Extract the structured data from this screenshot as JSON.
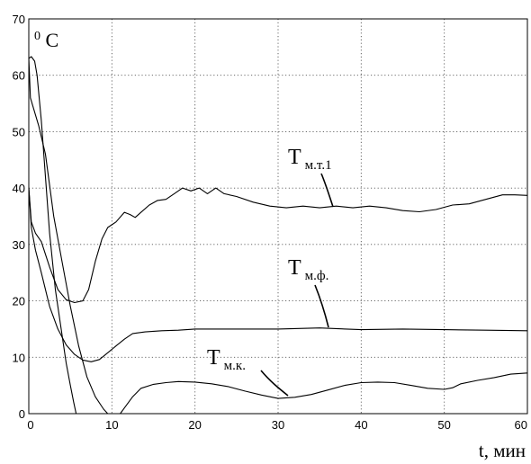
{
  "chart_data": {
    "type": "line",
    "title": "",
    "unit_label": {
      "sup": "0",
      "main": "C"
    },
    "xlabel": "t, мин",
    "ylabel": "",
    "xlim": [
      0,
      60
    ],
    "ylim": [
      0,
      70
    ],
    "xticks": [
      0,
      10,
      20,
      30,
      40,
      50,
      60
    ],
    "yticks": [
      0,
      10,
      20,
      30,
      40,
      50,
      60,
      70
    ],
    "grid": true,
    "series": [
      {
        "name": "",
        "label_main": "T",
        "label_sub": "м.т.1",
        "points": [
          [
            0,
            40
          ],
          [
            0.3,
            34
          ],
          [
            0.8,
            32
          ],
          [
            1.5,
            30.5
          ],
          [
            2.5,
            26
          ],
          [
            3.5,
            22
          ],
          [
            4.5,
            20.2
          ],
          [
            5.5,
            19.7
          ],
          [
            6.5,
            20
          ],
          [
            7.2,
            22
          ],
          [
            8,
            27
          ],
          [
            8.8,
            31
          ],
          [
            9.5,
            33
          ],
          [
            10.5,
            34
          ],
          [
            11.5,
            35.7
          ],
          [
            12.2,
            35.3
          ],
          [
            12.8,
            34.8
          ],
          [
            13.5,
            35.7
          ],
          [
            14.5,
            37
          ],
          [
            15.5,
            37.8
          ],
          [
            16.5,
            38
          ],
          [
            17.5,
            39
          ],
          [
            18.5,
            40
          ],
          [
            19.5,
            39.5
          ],
          [
            20.5,
            40
          ],
          [
            21.5,
            39
          ],
          [
            22.5,
            40
          ],
          [
            23.5,
            39
          ],
          [
            25,
            38.5
          ],
          [
            27,
            37.5
          ],
          [
            29,
            36.8
          ],
          [
            31,
            36.5
          ],
          [
            33,
            36.8
          ],
          [
            35,
            36.5
          ],
          [
            37,
            36.8
          ],
          [
            39,
            36.5
          ],
          [
            41,
            36.8
          ],
          [
            43,
            36.5
          ],
          [
            45,
            36
          ],
          [
            47,
            35.8
          ],
          [
            49,
            36.2
          ],
          [
            51,
            37
          ],
          [
            53,
            37.2
          ],
          [
            55,
            38
          ],
          [
            57,
            38.8
          ],
          [
            58.5,
            38.8
          ],
          [
            60,
            38.7
          ]
        ]
      },
      {
        "name": "",
        "label_main": "T",
        "label_sub": "м.ф.",
        "points": [
          [
            0,
            40
          ],
          [
            0.3,
            33
          ],
          [
            0.8,
            29
          ],
          [
            1.5,
            25
          ],
          [
            2.5,
            19
          ],
          [
            3.5,
            15
          ],
          [
            4.5,
            12.2
          ],
          [
            5.5,
            10.5
          ],
          [
            6.5,
            9.5
          ],
          [
            7.5,
            9.2
          ],
          [
            8.5,
            9.6
          ],
          [
            9.5,
            10.8
          ],
          [
            10.5,
            12
          ],
          [
            11.5,
            13.2
          ],
          [
            12.5,
            14.2
          ],
          [
            14,
            14.5
          ],
          [
            16,
            14.7
          ],
          [
            18,
            14.8
          ],
          [
            20,
            15
          ],
          [
            25,
            15
          ],
          [
            30,
            15
          ],
          [
            35,
            15.2
          ],
          [
            40,
            14.9
          ],
          [
            45,
            15
          ],
          [
            50,
            14.9
          ],
          [
            55,
            14.8
          ],
          [
            60,
            14.7
          ]
        ]
      },
      {
        "name": "",
        "label_main": "T",
        "label_sub": "м.к.",
        "points": [
          [
            0,
            63
          ],
          [
            0.2,
            56
          ],
          [
            0.6,
            54
          ],
          [
            1.2,
            51
          ],
          [
            2,
            46
          ],
          [
            3,
            35
          ],
          [
            4,
            27
          ],
          [
            5,
            19
          ],
          [
            6,
            12
          ],
          [
            7,
            6.5
          ],
          [
            8,
            3
          ],
          [
            9,
            0.8
          ],
          [
            9.5,
            0
          ]
        ],
        "points2": [
          [
            11,
            0
          ],
          [
            11.5,
            1
          ],
          [
            12.5,
            3
          ],
          [
            13.5,
            4.5
          ],
          [
            15,
            5.2
          ],
          [
            16.5,
            5.5
          ],
          [
            18,
            5.7
          ],
          [
            20,
            5.6
          ],
          [
            22,
            5.3
          ],
          [
            24,
            4.8
          ],
          [
            26,
            4
          ],
          [
            28,
            3.3
          ],
          [
            30,
            2.7
          ],
          [
            32,
            2.9
          ],
          [
            34,
            3.4
          ],
          [
            36,
            4.2
          ],
          [
            38,
            5
          ],
          [
            40,
            5.5
          ],
          [
            42,
            5.6
          ],
          [
            44,
            5.5
          ],
          [
            46,
            5
          ],
          [
            48,
            4.5
          ],
          [
            50,
            4.3
          ],
          [
            51,
            4.6
          ],
          [
            52,
            5.3
          ],
          [
            54,
            5.9
          ],
          [
            56,
            6.4
          ],
          [
            58,
            7
          ],
          [
            60,
            7.2
          ]
        ]
      },
      {
        "name": "",
        "points": [
          [
            0,
            63
          ],
          [
            0.3,
            63.3
          ],
          [
            0.7,
            62.5
          ],
          [
            1,
            60
          ],
          [
            1.5,
            52
          ],
          [
            2,
            42
          ],
          [
            2.5,
            32
          ],
          [
            3.2,
            22
          ],
          [
            4,
            14
          ],
          [
            4.5,
            9
          ],
          [
            5,
            5
          ],
          [
            5.4,
            2
          ],
          [
            5.7,
            0
          ]
        ]
      }
    ]
  }
}
